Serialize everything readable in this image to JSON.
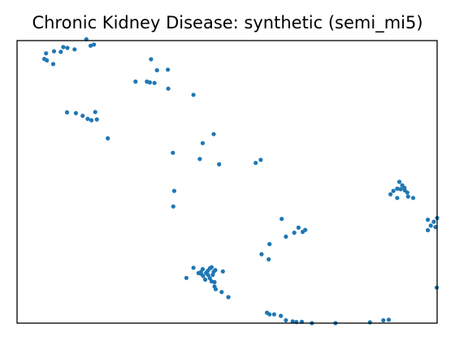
{
  "chart_data": {
    "type": "scatter",
    "title": "Chronic Kidney Disease: synthetic (semi_mi5)",
    "xlabel": "",
    "ylabel": "",
    "xlim": [
      0,
      1
    ],
    "ylim": [
      0,
      1
    ],
    "grid": false,
    "ticks": false,
    "point_color": "#1f77b4",
    "points": [
      [
        0.165,
        1.005
      ],
      [
        0.175,
        0.982
      ],
      [
        0.183,
        0.986
      ],
      [
        0.11,
        0.977
      ],
      [
        0.12,
        0.974
      ],
      [
        0.137,
        0.969
      ],
      [
        0.088,
        0.962
      ],
      [
        0.104,
        0.96
      ],
      [
        0.069,
        0.955
      ],
      [
        0.065,
        0.935
      ],
      [
        0.071,
        0.93
      ],
      [
        0.086,
        0.917
      ],
      [
        0.319,
        0.934
      ],
      [
        0.333,
        0.895
      ],
      [
        0.359,
        0.897
      ],
      [
        0.282,
        0.855
      ],
      [
        0.309,
        0.855
      ],
      [
        0.316,
        0.852
      ],
      [
        0.327,
        0.85
      ],
      [
        0.36,
        0.83
      ],
      [
        0.42,
        0.808
      ],
      [
        0.119,
        0.746
      ],
      [
        0.14,
        0.743
      ],
      [
        0.156,
        0.734
      ],
      [
        0.168,
        0.723
      ],
      [
        0.177,
        0.718
      ],
      [
        0.186,
        0.747
      ],
      [
        0.19,
        0.721
      ],
      [
        0.216,
        0.654
      ],
      [
        0.468,
        0.669
      ],
      [
        0.442,
        0.637
      ],
      [
        0.371,
        0.603
      ],
      [
        0.435,
        0.581
      ],
      [
        0.481,
        0.562
      ],
      [
        0.568,
        0.567
      ],
      [
        0.58,
        0.578
      ],
      [
        0.374,
        0.468
      ],
      [
        0.372,
        0.413
      ],
      [
        0.91,
        0.5
      ],
      [
        0.917,
        0.488
      ],
      [
        0.922,
        0.479
      ],
      [
        0.905,
        0.476
      ],
      [
        0.913,
        0.474
      ],
      [
        0.923,
        0.47
      ],
      [
        0.896,
        0.468
      ],
      [
        0.889,
        0.456
      ],
      [
        0.929,
        0.462
      ],
      [
        0.931,
        0.448
      ],
      [
        0.943,
        0.443
      ],
      [
        0.905,
        0.443
      ],
      [
        0.978,
        0.366
      ],
      [
        0.992,
        0.359
      ],
      [
        1.0,
        0.372
      ],
      [
        0.985,
        0.345
      ],
      [
        0.996,
        0.34
      ],
      [
        0.978,
        0.329
      ],
      [
        0.63,
        0.369
      ],
      [
        0.67,
        0.338
      ],
      [
        0.68,
        0.323
      ],
      [
        0.66,
        0.32
      ],
      [
        0.686,
        0.33
      ],
      [
        0.64,
        0.306
      ],
      [
        0.601,
        0.28
      ],
      [
        0.582,
        0.244
      ],
      [
        0.599,
        0.226
      ],
      [
        0.42,
        0.196
      ],
      [
        0.442,
        0.191
      ],
      [
        0.454,
        0.185
      ],
      [
        0.459,
        0.194
      ],
      [
        0.463,
        0.198
      ],
      [
        0.468,
        0.182
      ],
      [
        0.45,
        0.178
      ],
      [
        0.438,
        0.175
      ],
      [
        0.455,
        0.17
      ],
      [
        0.466,
        0.171
      ],
      [
        0.443,
        0.167
      ],
      [
        0.438,
        0.181
      ],
      [
        0.432,
        0.177
      ],
      [
        0.472,
        0.188
      ],
      [
        0.49,
        0.183
      ],
      [
        0.403,
        0.16
      ],
      [
        0.448,
        0.154
      ],
      [
        0.459,
        0.159
      ],
      [
        0.463,
        0.148
      ],
      [
        0.47,
        0.145
      ],
      [
        0.47,
        0.13
      ],
      [
        0.473,
        0.12
      ],
      [
        0.487,
        0.11
      ],
      [
        0.503,
        0.092
      ],
      [
        0.595,
        0.037
      ],
      [
        0.601,
        0.031
      ],
      [
        0.612,
        0.031
      ],
      [
        0.628,
        0.026
      ],
      [
        0.64,
        0.01
      ],
      [
        0.656,
        0.006
      ],
      [
        0.665,
        0.004
      ],
      [
        0.678,
        0.005
      ],
      [
        0.702,
        0.0
      ],
      [
        0.758,
        0.0
      ],
      [
        0.84,
        0.003
      ],
      [
        0.872,
        0.01
      ],
      [
        0.885,
        0.012
      ],
      [
        0.999,
        0.126
      ]
    ]
  }
}
